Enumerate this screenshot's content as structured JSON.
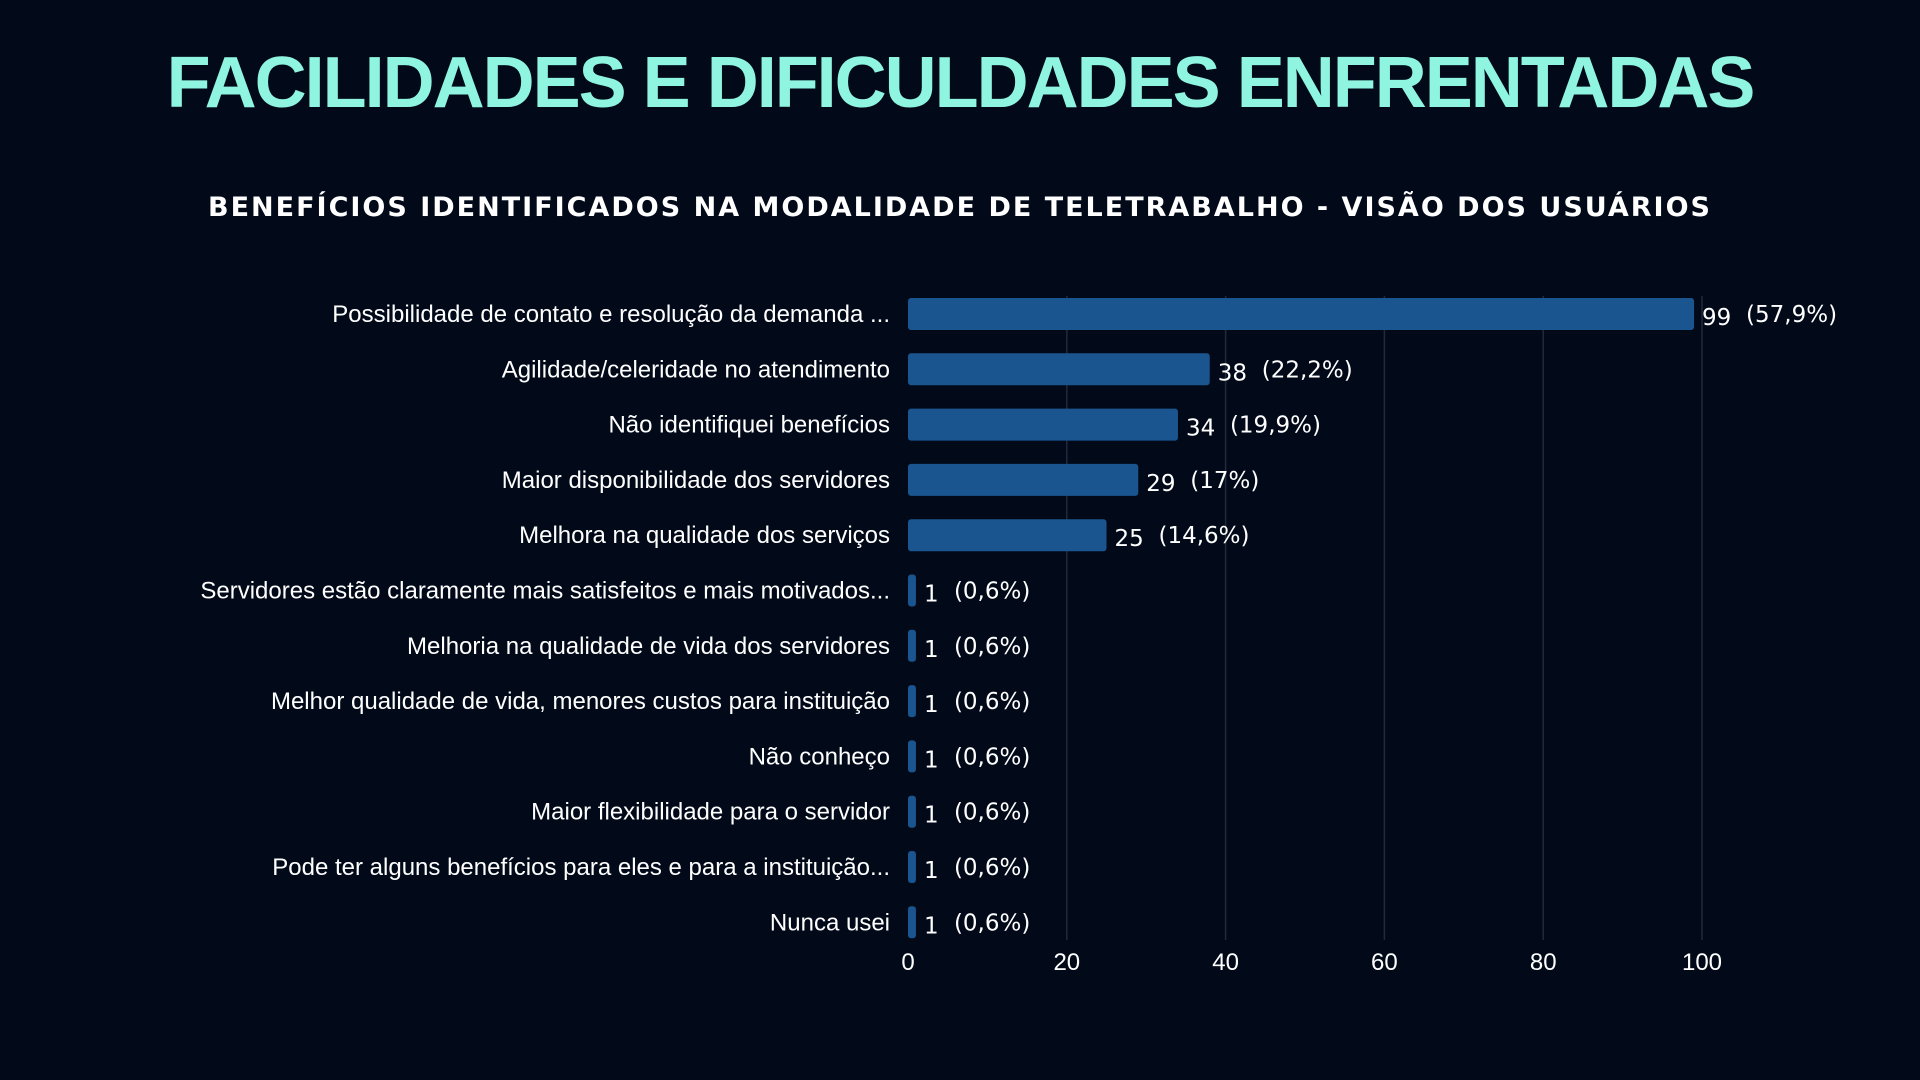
{
  "page": {
    "title": "FACILIDADES E DIFICULDADES ENFRENTADAS"
  },
  "colors": {
    "background": "#020a1a",
    "title": "#8ff5e0",
    "bar": "#1a5590",
    "text": "#ffffff",
    "grid": "#1f2a3d"
  },
  "chart_data": {
    "type": "bar",
    "orientation": "horizontal",
    "title": "BENEFÍCIOS IDENTIFICADOS NA MODALIDADE DE TELETRABALHO - VISÃO DOS USUÁRIOS",
    "xlabel": "",
    "ylabel": "",
    "xlim": [
      0,
      100
    ],
    "x_ticks": [
      0,
      20,
      40,
      60,
      80,
      100
    ],
    "grid": "vertical",
    "categories": [
      "Possibilidade de contato e resolução da demanda ...",
      "Agilidade/celeridade no atendimento",
      "Não identifiquei benefícios",
      "Maior disponibilidade dos servidores",
      "Melhora na qualidade dos serviços",
      "Servidores estão claramente mais satisfeitos e mais motivados...",
      "Melhoria na qualidade de vida dos servidores",
      "Melhor qualidade de vida, menores custos para instituição",
      "Não conheço",
      "Maior flexibilidade para o servidor",
      "Pode ter alguns benefícios para eles e para a instituição...",
      "Nunca usei"
    ],
    "values": [
      99,
      38,
      34,
      29,
      25,
      1,
      1,
      1,
      1,
      1,
      1,
      1
    ],
    "percent_labels": [
      "(57,9%)",
      "(22,2%)",
      "(19,9%)",
      "(17%)",
      "(14,6%)",
      "(0,6%)",
      "(0,6%)",
      "(0,6%)",
      "(0,6%)",
      "(0,6%)",
      "(0,6%)",
      "(0,6%)"
    ]
  }
}
